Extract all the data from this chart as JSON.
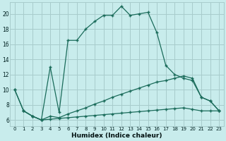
{
  "xlabel": "Humidex (Indice chaleur)",
  "background_color": "#c8ecec",
  "grid_color": "#a8cccc",
  "line_color": "#1a6b5a",
  "xlim_min": -0.5,
  "xlim_max": 23.5,
  "ylim_min": 5.2,
  "ylim_max": 21.5,
  "xticks": [
    0,
    1,
    2,
    3,
    4,
    5,
    6,
    7,
    8,
    9,
    10,
    11,
    12,
    13,
    14,
    15,
    16,
    17,
    18,
    19,
    20,
    21,
    22,
    23
  ],
  "yticks": [
    6,
    8,
    10,
    12,
    14,
    16,
    18,
    20
  ],
  "curve_main_x": [
    0,
    1,
    2,
    3,
    4,
    5,
    6,
    7,
    8,
    9,
    10,
    11,
    12,
    13,
    14,
    15,
    16,
    17,
    18,
    19,
    20,
    21,
    22,
    23
  ],
  "curve_main_y": [
    10,
    7.2,
    6.5,
    6.0,
    13.0,
    7.0,
    16.5,
    16.5,
    18.0,
    19.0,
    19.8,
    19.8,
    21.0,
    19.8,
    20.0,
    20.2,
    17.5,
    13.2,
    12.0,
    11.5,
    11.2,
    9.0,
    8.5,
    7.2
  ],
  "curve_mid_x": [
    0,
    1,
    2,
    3,
    4,
    5,
    6,
    7,
    8,
    9,
    10,
    11,
    12,
    13,
    14,
    15,
    16,
    17,
    18,
    19,
    20,
    21,
    22,
    23
  ],
  "curve_mid_y": [
    10,
    7.2,
    6.5,
    6.0,
    6.5,
    6.3,
    6.8,
    7.2,
    7.6,
    8.1,
    8.5,
    9.0,
    9.4,
    9.8,
    10.2,
    10.6,
    11.0,
    11.2,
    11.5,
    11.8,
    11.5,
    9.0,
    8.5,
    7.2
  ],
  "curve_low_x": [
    1,
    2,
    3,
    4,
    5,
    6,
    7,
    8,
    9,
    10,
    11,
    12,
    13,
    14,
    15,
    16,
    17,
    18,
    19,
    20,
    21,
    22,
    23
  ],
  "curve_low_y": [
    7.2,
    6.5,
    6.0,
    6.1,
    6.2,
    6.3,
    6.4,
    6.5,
    6.6,
    6.7,
    6.8,
    6.9,
    7.0,
    7.1,
    7.2,
    7.3,
    7.4,
    7.5,
    7.6,
    7.4,
    7.2,
    7.2,
    7.2
  ]
}
